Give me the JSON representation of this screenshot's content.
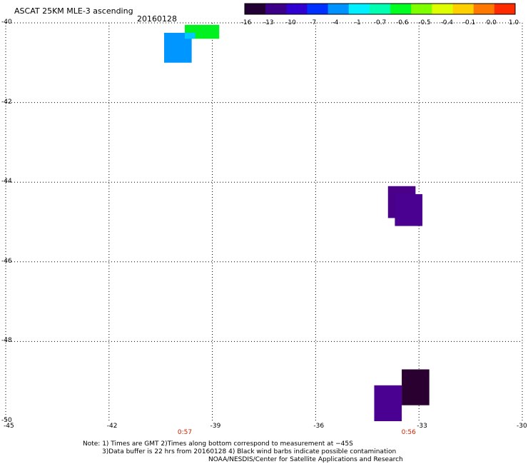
{
  "header": {
    "title": "ASCAT 25KM MLE-3 ascending",
    "date": "20160128"
  },
  "colorbar": {
    "labels": [
      "-16",
      "-13",
      "-10",
      "-7",
      "-4",
      "-1",
      "-0.7",
      "-0.6",
      "-0.5",
      "-0.4",
      "-0.1",
      "0.0",
      "1.0"
    ],
    "colors": [
      "#230033",
      "#3c0088",
      "#2f00d0",
      "#0030ff",
      "#0092ff",
      "#00f0ff",
      "#00ffb0",
      "#00ff20",
      "#7dff00",
      "#dfff00",
      "#ffd000",
      "#ff7800",
      "#ff2a00"
    ]
  },
  "footer": {
    "note_line1": "Note: 1) Times are GMT 2)Times along bottom correspond to measurement at −45S",
    "note_line2": "3)Data buffer is 22 hrs from 20160128 4) Black wind barbs indicate possible contamination",
    "credit": "NOAA/NESDIS/Center for Satellite Applications and Research"
  },
  "chart_data": {
    "type": "heatmap",
    "title": "ASCAT 25KM MLE-3 ascending",
    "subtitle": "20160128",
    "xlabel": "",
    "ylabel": "",
    "xlim": [
      -45,
      -30
    ],
    "ylim": [
      -50,
      -40
    ],
    "x_ticks": [
      "-45",
      "-42",
      "-39",
      "-36",
      "-33",
      "-30"
    ],
    "x_tick_values": [
      -45,
      -42,
      -39,
      -36,
      -33,
      -30
    ],
    "y_ticks": [
      "-40",
      "-42",
      "-44",
      "-46",
      "-48",
      "-50"
    ],
    "y_tick_values": [
      -40,
      -42,
      -44,
      -46,
      -48,
      -50
    ],
    "grid": true,
    "time_labels": [
      {
        "lon": -39.8,
        "text": "0:57"
      },
      {
        "lon": -33.3,
        "text": "0:56"
      }
    ],
    "cells": [
      {
        "lon0": -39.8,
        "lon1": -38.8,
        "lat0": -40.4,
        "lat1": -40.05,
        "color": "#00f020"
      },
      {
        "lon0": -40.4,
        "lon1": -39.6,
        "lat0": -41.0,
        "lat1": -40.25,
        "color": "#0096ff"
      },
      {
        "lon0": -39.8,
        "lon1": -39.5,
        "lat0": -40.4,
        "lat1": -40.25,
        "color": "#00c8ff"
      },
      {
        "lon0": -33.9,
        "lon1": -33.1,
        "lat0": -44.9,
        "lat1": -44.1,
        "color": "#4a0088"
      },
      {
        "lon0": -33.7,
        "lon1": -32.9,
        "lat0": -45.1,
        "lat1": -44.3,
        "color": "#4a0090"
      },
      {
        "lon0": -34.3,
        "lon1": -33.5,
        "lat0": -50.0,
        "lat1": -49.1,
        "color": "#4a0090"
      },
      {
        "lon0": -33.5,
        "lon1": -32.7,
        "lat0": -49.6,
        "lat1": -48.7,
        "color": "#2a0030"
      }
    ]
  }
}
